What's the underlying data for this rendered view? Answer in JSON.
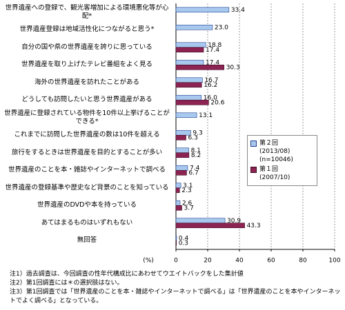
{
  "chart_data": {
    "type": "bar",
    "orientation": "horizontal",
    "categories": [
      "世界遺産への登録で、観光客増加による環境悪化等が心配*",
      "世界遺産登録は地域活性化につながると思う*",
      "自分の国や県の世界遺産を誇りに思っている",
      "世界遺産を取り上げたテレビ番組をよく見る",
      "海外の世界遺産を訪れたことがある",
      "どうしても訪問したいと思う世界遺産がある",
      "世界遺産に登録されている物件を10件以上挙げることができる*",
      "これまでに訪問した世界遺産の数は10件を超える",
      "旅行をするときは世界遺産を目的とすることが多い",
      "世界遺産のことを本・雑誌やインターネットで調べる",
      "世界遺産の登録基準や歴史など背景のことを知っている",
      "世界遺産のDVDや本を持っている",
      "あてはまるものはいずれもない",
      "無回答"
    ],
    "series": [
      {
        "name": "第２回\n(2013/08)\n(n=10046)",
        "color": "#a8c8ee",
        "stroke": "#1f3f8f",
        "values": [
          33.4,
          23.0,
          18.8,
          17.4,
          16.7,
          16.0,
          13.1,
          9.3,
          8.1,
          7.4,
          3.1,
          2.6,
          30.9,
          0.4
        ],
        "value_labels": [
          "33.4",
          "23.0",
          "18.8",
          "17.4",
          "16.7",
          "16.0",
          "13.1",
          "9.3",
          "8.1",
          "7.4",
          "3.1",
          "2.6",
          "30.9",
          "0.4"
        ]
      },
      {
        "name": "第１回\n(2007/10)",
        "color": "#8c2352",
        "stroke": "#3a0a20",
        "values": [
          null,
          null,
          17.4,
          30.3,
          16.2,
          20.6,
          null,
          6.3,
          8.2,
          6.7,
          2.3,
          3.7,
          43.3,
          0.3
        ],
        "value_labels": [
          null,
          null,
          "17.4",
          "30.3",
          "16.2",
          "20.6",
          null,
          "6.3",
          "8.2",
          "6.7",
          "2.3",
          "3.7",
          "43.3",
          "0.3"
        ]
      }
    ],
    "xlim": [
      0,
      100
    ],
    "xticks": [
      0,
      20,
      40,
      60,
      80,
      100
    ],
    "grid": true,
    "x_label": "(%)",
    "notes": [
      "注1）過去調査は、今回調査の性年代構成比にあわせてウエイトバックをした集計値",
      "注2）第1回調査には＊の選択肢はない。",
      "注3）第1回調査では「世界遺産のことを本・雑誌やインターネットで調べる」は「世界遺産のことを本やインターネットでよく調べる」となっている。"
    ]
  }
}
